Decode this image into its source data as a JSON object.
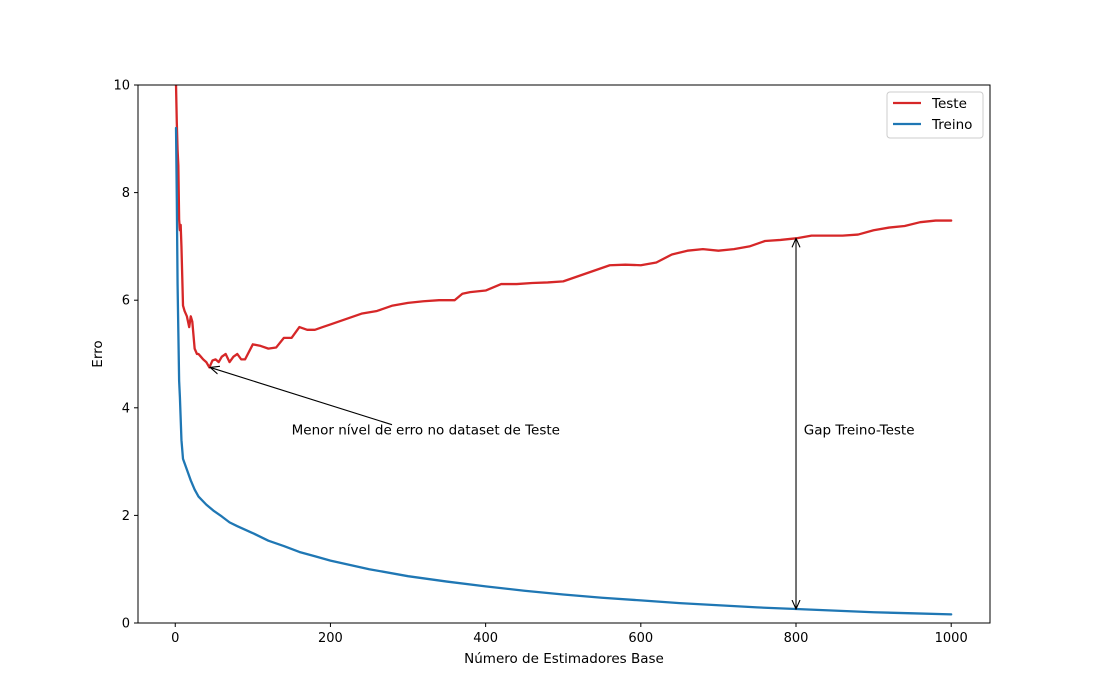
{
  "chart_data": {
    "type": "line",
    "title": "",
    "xlabel": "Número de Estimadores Base",
    "ylabel": "Erro",
    "xlim": [
      -48,
      1050
    ],
    "ylim": [
      0,
      10
    ],
    "x_ticks": [
      0,
      200,
      400,
      600,
      800,
      1000
    ],
    "y_ticks": [
      0,
      2,
      4,
      6,
      8,
      10
    ],
    "grid": false,
    "legend": {
      "position": "top-right",
      "entries": [
        "Teste",
        "Treino"
      ]
    },
    "series": [
      {
        "name": "Teste",
        "color": "#d62728",
        "x": [
          1,
          2,
          3,
          4,
          5,
          6,
          7,
          8,
          10,
          12,
          15,
          18,
          20,
          22,
          25,
          28,
          30,
          33,
          36,
          40,
          44,
          48,
          52,
          56,
          60,
          65,
          70,
          75,
          80,
          85,
          90,
          100,
          110,
          120,
          130,
          140,
          150,
          160,
          170,
          180,
          190,
          200,
          220,
          240,
          260,
          280,
          300,
          320,
          340,
          360,
          370,
          380,
          400,
          420,
          440,
          460,
          480,
          500,
          520,
          540,
          560,
          580,
          600,
          620,
          640,
          660,
          680,
          700,
          720,
          740,
          760,
          780,
          800,
          820,
          840,
          860,
          880,
          900,
          920,
          940,
          960,
          980,
          1000
        ],
        "values": [
          10.0,
          9.3,
          8.8,
          8.5,
          7.5,
          7.3,
          7.4,
          7.0,
          5.9,
          5.8,
          5.7,
          5.5,
          5.7,
          5.6,
          5.1,
          5.0,
          5.0,
          4.95,
          4.9,
          4.85,
          4.75,
          4.88,
          4.9,
          4.85,
          4.95,
          5.0,
          4.85,
          4.95,
          5.0,
          4.9,
          4.9,
          5.18,
          5.15,
          5.1,
          5.12,
          5.3,
          5.3,
          5.5,
          5.45,
          5.45,
          5.5,
          5.55,
          5.65,
          5.75,
          5.8,
          5.9,
          5.95,
          5.98,
          6.0,
          6.0,
          6.12,
          6.15,
          6.18,
          6.3,
          6.3,
          6.32,
          6.33,
          6.35,
          6.45,
          6.55,
          6.65,
          6.66,
          6.65,
          6.7,
          6.85,
          6.92,
          6.95,
          6.92,
          6.95,
          7.0,
          7.1,
          7.12,
          7.15,
          7.2,
          7.2,
          7.2,
          7.22,
          7.3,
          7.35,
          7.38,
          7.45,
          7.48,
          7.48
        ]
      },
      {
        "name": "Treino",
        "color": "#1f77b4",
        "x": [
          1,
          2,
          3,
          4,
          5,
          6,
          8,
          10,
          15,
          20,
          25,
          30,
          40,
          50,
          60,
          70,
          80,
          100,
          120,
          140,
          160,
          180,
          200,
          250,
          300,
          350,
          400,
          450,
          500,
          550,
          600,
          650,
          700,
          750,
          800,
          850,
          900,
          950,
          1000
        ],
        "values": [
          9.2,
          7.9,
          6.3,
          5.4,
          4.5,
          4.2,
          3.4,
          3.05,
          2.85,
          2.65,
          2.48,
          2.35,
          2.2,
          2.08,
          1.98,
          1.87,
          1.8,
          1.67,
          1.53,
          1.43,
          1.32,
          1.24,
          1.16,
          1.0,
          0.87,
          0.77,
          0.68,
          0.6,
          0.53,
          0.47,
          0.42,
          0.37,
          0.33,
          0.29,
          0.26,
          0.23,
          0.2,
          0.18,
          0.16
        ]
      }
    ],
    "annotations": [
      {
        "text": "Menor nível de erro no dataset de Teste",
        "text_x": 150,
        "text_y": 3.5,
        "arrow_to": [
          45,
          4.75
        ]
      },
      {
        "text": "Gap Treino-Teste",
        "text_x": 810,
        "text_y": 3.5,
        "double_arrow_x": 800,
        "double_arrow_y": [
          0.26,
          7.15
        ]
      }
    ]
  }
}
